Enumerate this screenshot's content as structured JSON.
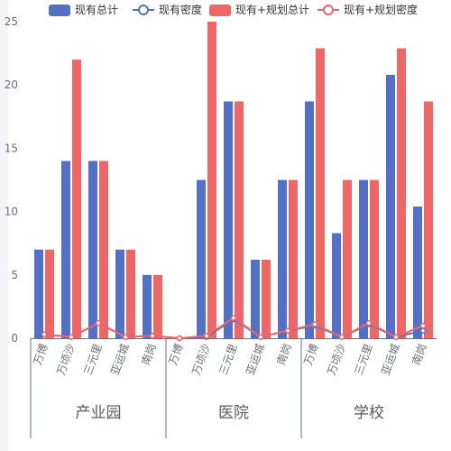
{
  "chart_data": {
    "type": "bar",
    "legend_position": "top",
    "grid": false,
    "ylim": [
      0,
      25
    ],
    "yticks": [
      0,
      5,
      10,
      15,
      20,
      25
    ],
    "legend": [
      {
        "name": "现有总计",
        "kind": "bar",
        "color": "#5470c6"
      },
      {
        "name": "现有密度",
        "kind": "line",
        "color": "#5470c6"
      },
      {
        "name": "现有+规划总计",
        "kind": "bar",
        "color": "#ee6666"
      },
      {
        "name": "现有+规划密度",
        "kind": "line",
        "color": "#ee6666"
      }
    ],
    "groups": [
      {
        "name": "产业园",
        "categories": [
          "万博",
          "万顷沙",
          "三元里",
          "亚运城",
          "南岗"
        ]
      },
      {
        "name": "医院",
        "categories": [
          "万博",
          "万顷沙",
          "三元里",
          "亚运城",
          "南岗"
        ]
      },
      {
        "name": "学校",
        "categories": [
          "万博",
          "万顷沙",
          "三元里",
          "亚运城",
          "南岗"
        ]
      }
    ],
    "series": [
      {
        "name": "现有总计",
        "type": "bar",
        "color": "#5470c6",
        "values": [
          7,
          14,
          14,
          7,
          5,
          0,
          12.5,
          18.7,
          6.2,
          12.5,
          18.7,
          8.3,
          12.5,
          20.8,
          10.4
        ]
      },
      {
        "name": "现有+规划总计",
        "type": "bar",
        "color": "#ee6666",
        "values": [
          7,
          22,
          14,
          7,
          5,
          0,
          25,
          18.7,
          6.2,
          12.5,
          22.9,
          12.5,
          12.5,
          22.9,
          18.7
        ]
      },
      {
        "name": "现有密度",
        "type": "line",
        "color": "#5470c6",
        "values": [
          0.3,
          0.1,
          1.2,
          0.1,
          0.2,
          0,
          0.1,
          1.5,
          0.1,
          0.6,
          1.0,
          0.1,
          1.1,
          0.1,
          0.6
        ]
      },
      {
        "name": "现有+规划密度",
        "type": "line",
        "color": "#ee6666",
        "values": [
          0.3,
          0.1,
          1.2,
          0.1,
          0.2,
          0,
          0.2,
          1.6,
          0.1,
          0.6,
          1.1,
          0.1,
          1.2,
          0.1,
          1.0
        ]
      }
    ]
  }
}
